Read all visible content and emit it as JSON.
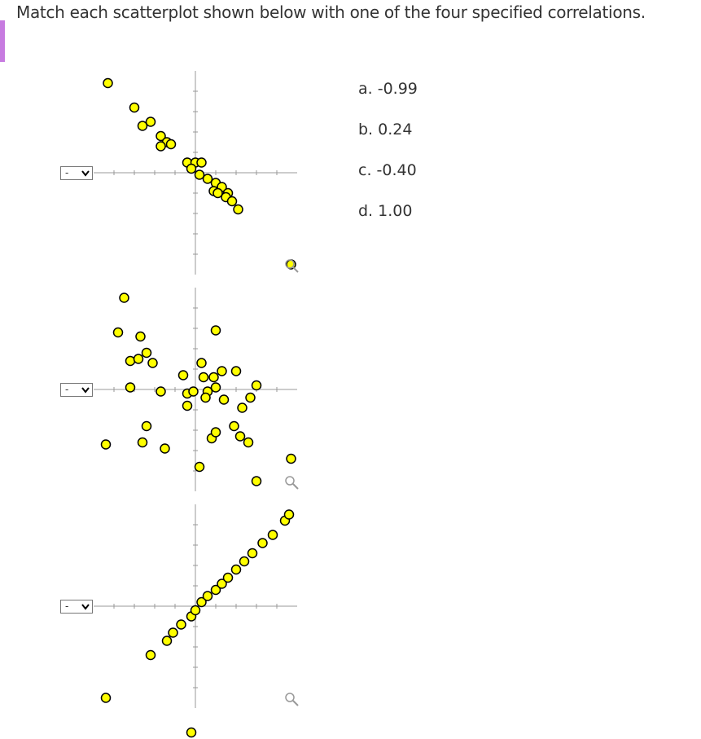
{
  "question": "Match each scatterplot shown below with one of the four specified correlations.",
  "select_placeholder": "-",
  "options": [
    "a. -0.99",
    "b. 0.24",
    "c. -0.40",
    "d. 1.00"
  ],
  "plots": [
    {
      "lim": [
        -5,
        5
      ],
      "ticks": [
        -4,
        -3,
        -2,
        -1,
        1,
        2,
        3,
        4
      ],
      "x": [
        -4.3,
        -3.0,
        -2.6,
        -2.2,
        -1.7,
        -1.4,
        -1.7,
        -1.2,
        -0.4,
        0,
        0.3,
        -0.2,
        0.2,
        0.6,
        1.0,
        0.9,
        1.3,
        1.6,
        1.1,
        1.5,
        1.8,
        2.1,
        4.7
      ],
      "y": [
        4.4,
        3.2,
        2.3,
        2.5,
        1.8,
        1.5,
        1.3,
        1.4,
        0.5,
        0.5,
        0.5,
        0.2,
        -0.1,
        -0.3,
        -0.5,
        -0.9,
        -0.7,
        -1.0,
        -1.0,
        -1.2,
        -1.4,
        -1.8,
        -4.5
      ]
    },
    {
      "lim": [
        -5,
        5
      ],
      "ticks": [
        -4,
        -3,
        -2,
        -1,
        1,
        2,
        3,
        4
      ],
      "x": [
        -3.5,
        -3.8,
        -2.7,
        -3.2,
        -2.8,
        -2.4,
        -2.1,
        -3.2,
        -1.7,
        -0.6,
        -0.4,
        -0.4,
        -0.1,
        0.3,
        0.4,
        0.9,
        1.0,
        1.3,
        2.0,
        1.0,
        0.6,
        0.5,
        1.4,
        2.3,
        3.0,
        2.7,
        -2.4,
        -2.6,
        -4.4,
        -1.5,
        0.8,
        1.0,
        1.9,
        2.2,
        2.6,
        0.2,
        3.0,
        4.7
      ],
      "y": [
        4.5,
        2.8,
        2.6,
        1.4,
        1.5,
        1.8,
        1.3,
        0.1,
        -0.1,
        0.7,
        -0.2,
        -0.8,
        -0.1,
        1.3,
        0.6,
        0.6,
        2.9,
        0.9,
        0.9,
        0.1,
        -0.1,
        -0.4,
        -0.5,
        -0.9,
        0.2,
        -0.4,
        -1.8,
        -2.6,
        -2.7,
        -2.9,
        -2.4,
        -2.1,
        -1.8,
        -2.3,
        -2.6,
        -3.8,
        -4.5,
        -3.4
      ]
    },
    {
      "lim": [
        -5,
        5
      ],
      "ticks": [
        -4,
        -3,
        -2,
        -1,
        1,
        2,
        3,
        4
      ],
      "x": [
        -4.4,
        -2.2,
        -1.4,
        -1.1,
        -0.7,
        -0.2,
        0,
        0.3,
        0.6,
        1.0,
        1.3,
        1.6,
        2.0,
        2.4,
        2.8,
        3.3,
        3.8,
        4.4,
        4.6,
        -0.2
      ],
      "y": [
        -4.5,
        -2.4,
        -1.7,
        -1.3,
        -0.9,
        -0.5,
        -0.2,
        0.2,
        0.5,
        0.8,
        1.1,
        1.4,
        1.8,
        2.2,
        2.6,
        3.1,
        3.5,
        4.2,
        4.5,
        -6.2
      ]
    }
  ]
}
